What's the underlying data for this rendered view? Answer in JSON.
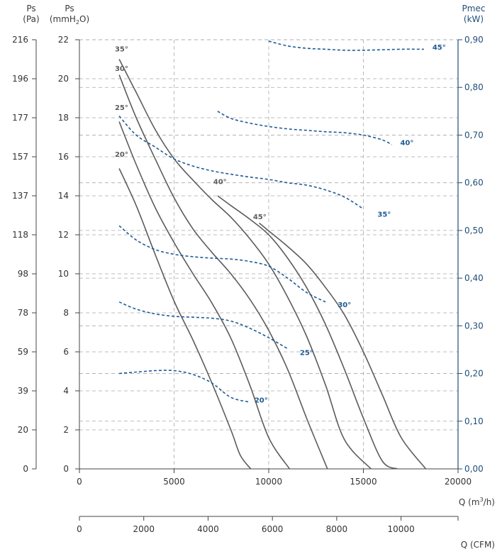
{
  "chart_data": {
    "type": "line",
    "axes": {
      "y_pa": {
        "label": "Ps",
        "unit": "(Pa)",
        "ticks": [
          "216",
          "196",
          "177",
          "157",
          "137",
          "118",
          "98",
          "78",
          "59",
          "39",
          "20",
          "0"
        ]
      },
      "y_mmh2o": {
        "label": "Ps",
        "unit_prefix": "(mmH",
        "unit_sub": "2",
        "unit_suffix": "O)",
        "range": [
          0,
          22
        ],
        "ticks": [
          "22",
          "20",
          "18",
          "16",
          "14",
          "12",
          "10",
          "8",
          "6",
          "4",
          "2",
          "0"
        ]
      },
      "y_right": {
        "label": "Pmec",
        "unit": "(kW)",
        "range": [
          0,
          0.9
        ],
        "ticks": [
          "0,90",
          "0,80",
          "0,70",
          "0,60",
          "0,50",
          "0,40",
          "0,30",
          "0,20",
          "0,10",
          "0,00"
        ]
      },
      "x_m3h": {
        "label_prefix": "Q (m",
        "label_sup": "3",
        "label_suffix": "/h)",
        "range": [
          0,
          20000
        ],
        "ticks": [
          "0",
          "5000",
          "10000",
          "15000",
          "20000"
        ]
      },
      "x_cfm": {
        "label": "Q (CFM)",
        "ticks": [
          "0",
          "2000",
          "4000",
          "6000",
          "8000",
          "10000"
        ],
        "tick_values": [
          0,
          2000,
          4000,
          6000,
          8000,
          10000
        ]
      }
    },
    "grid": "dashed",
    "pressure_series": [
      {
        "name": "20°",
        "label_at": [
          2000,
          16.0
        ],
        "points": [
          [
            2100,
            15.4
          ],
          [
            3000,
            13.5
          ],
          [
            4000,
            11.0
          ],
          [
            5000,
            8.6
          ],
          [
            6000,
            6.6
          ],
          [
            7000,
            4.4
          ],
          [
            8000,
            2.0
          ],
          [
            8500,
            0.7
          ],
          [
            9050,
            0
          ]
        ]
      },
      {
        "name": "25°",
        "label_at": [
          2000,
          18.4
        ],
        "points": [
          [
            2100,
            17.8
          ],
          [
            3000,
            15.6
          ],
          [
            4000,
            13.4
          ],
          [
            5000,
            11.6
          ],
          [
            6000,
            10.0
          ],
          [
            7000,
            8.5
          ],
          [
            8000,
            6.7
          ],
          [
            9000,
            4.3
          ],
          [
            10000,
            1.6
          ],
          [
            11100,
            0
          ]
        ]
      },
      {
        "name": "30°",
        "label_at": [
          2000,
          20.4
        ],
        "points": [
          [
            2100,
            20.2
          ],
          [
            3000,
            18.0
          ],
          [
            4000,
            15.9
          ],
          [
            5000,
            13.9
          ],
          [
            6000,
            12.3
          ],
          [
            7000,
            11.1
          ],
          [
            8000,
            10.0
          ],
          [
            9000,
            8.7
          ],
          [
            10000,
            7.1
          ],
          [
            11000,
            5.1
          ],
          [
            12000,
            2.6
          ],
          [
            13100,
            0
          ]
        ]
      },
      {
        "name": "35°",
        "label_at": [
          2000,
          21.4
        ],
        "points": [
          [
            2100,
            21.0
          ],
          [
            3000,
            19.3
          ],
          [
            4000,
            17.4
          ],
          [
            5000,
            15.9
          ],
          [
            6000,
            14.8
          ],
          [
            7000,
            13.8
          ],
          [
            8000,
            12.9
          ],
          [
            9000,
            11.8
          ],
          [
            10000,
            10.5
          ],
          [
            11000,
            8.8
          ],
          [
            12000,
            6.8
          ],
          [
            13000,
            4.3
          ],
          [
            14000,
            1.5
          ],
          [
            15400,
            0
          ]
        ]
      },
      {
        "name": "40°",
        "label_at": [
          7200,
          14.6
        ],
        "points": [
          [
            7300,
            14.0
          ],
          [
            8000,
            13.5
          ],
          [
            9000,
            12.8
          ],
          [
            10000,
            12.0
          ],
          [
            11000,
            10.8
          ],
          [
            12000,
            9.3
          ],
          [
            13000,
            7.4
          ],
          [
            14000,
            5.1
          ],
          [
            15000,
            2.6
          ],
          [
            16000,
            0.4
          ],
          [
            16800,
            0
          ]
        ]
      },
      {
        "name": "45°",
        "label_at": [
          9300,
          12.8
        ],
        "points": [
          [
            9500,
            12.6
          ],
          [
            10000,
            12.2
          ],
          [
            11000,
            11.4
          ],
          [
            12000,
            10.5
          ],
          [
            13000,
            9.3
          ],
          [
            14000,
            7.9
          ],
          [
            15000,
            6.0
          ],
          [
            16000,
            3.8
          ],
          [
            17000,
            1.6
          ],
          [
            18300,
            0
          ]
        ]
      }
    ],
    "power_series": [
      {
        "name": "20°",
        "label_at": [
          9300,
          0.145
        ],
        "points": [
          [
            2100,
            0.2
          ],
          [
            3000,
            0.203
          ],
          [
            4000,
            0.206
          ],
          [
            5000,
            0.206
          ],
          [
            6000,
            0.198
          ],
          [
            7000,
            0.18
          ],
          [
            8000,
            0.15
          ],
          [
            9000,
            0.14
          ]
        ]
      },
      {
        "name": "25°",
        "label_at": [
          11700,
          0.245
        ],
        "points": [
          [
            2100,
            0.35
          ],
          [
            3000,
            0.335
          ],
          [
            4000,
            0.325
          ],
          [
            5000,
            0.32
          ],
          [
            6000,
            0.318
          ],
          [
            7000,
            0.316
          ],
          [
            8000,
            0.31
          ],
          [
            9000,
            0.295
          ],
          [
            10000,
            0.275
          ],
          [
            11000,
            0.252
          ]
        ]
      },
      {
        "name": "30°",
        "label_at": [
          13700,
          0.345
        ],
        "points": [
          [
            2100,
            0.51
          ],
          [
            3000,
            0.48
          ],
          [
            4000,
            0.46
          ],
          [
            5000,
            0.45
          ],
          [
            6000,
            0.445
          ],
          [
            7000,
            0.442
          ],
          [
            8000,
            0.44
          ],
          [
            9000,
            0.435
          ],
          [
            10000,
            0.425
          ],
          [
            11000,
            0.4
          ],
          [
            12000,
            0.37
          ],
          [
            13000,
            0.35
          ]
        ]
      },
      {
        "name": "35°",
        "label_at": [
          15800,
          0.535
        ],
        "points": [
          [
            2100,
            0.74
          ],
          [
            3000,
            0.7
          ],
          [
            4000,
            0.675
          ],
          [
            5000,
            0.65
          ],
          [
            6000,
            0.635
          ],
          [
            7000,
            0.625
          ],
          [
            8000,
            0.618
          ],
          [
            9000,
            0.612
          ],
          [
            10000,
            0.607
          ],
          [
            11000,
            0.6
          ],
          [
            12000,
            0.595
          ],
          [
            13000,
            0.585
          ],
          [
            14000,
            0.57
          ],
          [
            15000,
            0.545
          ]
        ]
      },
      {
        "name": "40°",
        "label_at": [
          17000,
          0.685
        ],
        "points": [
          [
            7300,
            0.75
          ],
          [
            8000,
            0.735
          ],
          [
            9000,
            0.725
          ],
          [
            10000,
            0.718
          ],
          [
            11000,
            0.713
          ],
          [
            12000,
            0.71
          ],
          [
            13000,
            0.707
          ],
          [
            14000,
            0.705
          ],
          [
            15000,
            0.7
          ],
          [
            16000,
            0.69
          ],
          [
            16500,
            0.68
          ]
        ]
      },
      {
        "name": "45°",
        "label_at": [
          18700,
          0.885
        ],
        "points": [
          [
            10000,
            0.897
          ],
          [
            11000,
            0.887
          ],
          [
            12000,
            0.882
          ],
          [
            13000,
            0.88
          ],
          [
            14000,
            0.878
          ],
          [
            15000,
            0.878
          ],
          [
            16000,
            0.879
          ],
          [
            17000,
            0.88
          ],
          [
            18200,
            0.88
          ]
        ]
      }
    ],
    "colors": {
      "pressure": "#5c5c5c",
      "power": "#1f5a96",
      "grid": "#a8a8a8",
      "axis_left": "#444444",
      "axis_right": "#1f4e79"
    }
  }
}
